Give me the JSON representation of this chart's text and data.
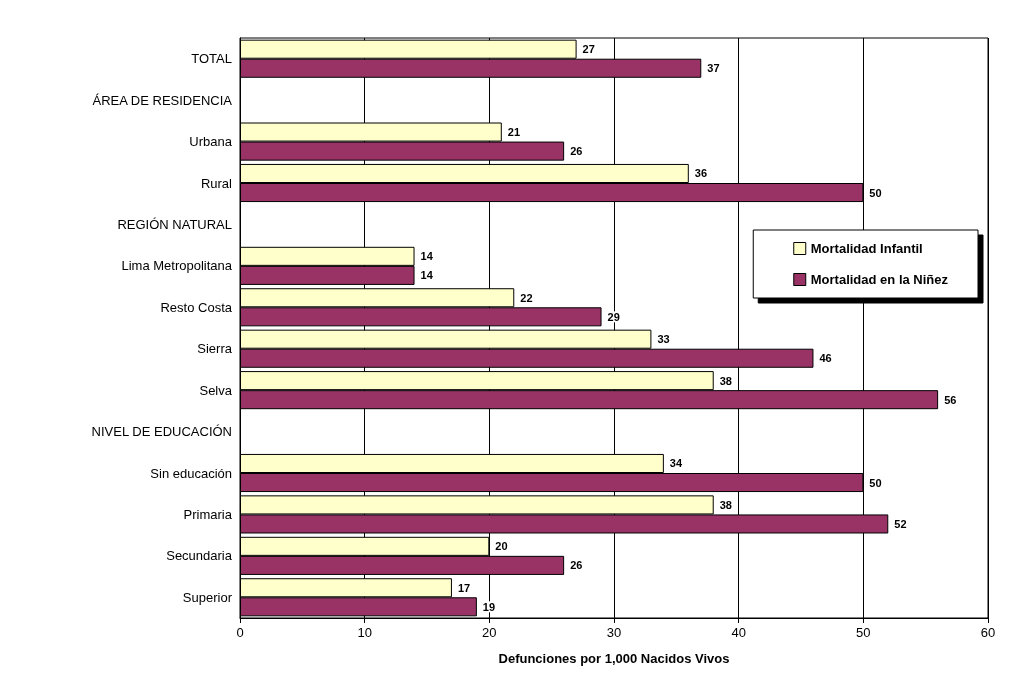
{
  "chart_data": {
    "type": "bar",
    "orientation": "horizontal",
    "xlabel": "Defunciones por 1,000 Nacidos Vivos",
    "categories": [
      "TOTAL",
      "ÁREA DE RESIDENCIA",
      "Urbana",
      "Rural",
      "REGIÓN NATURAL",
      "Lima Metropolitana",
      "Resto Costa",
      "Sierra",
      "Selva",
      "NIVEL DE EDUCACIÓN",
      "Sin educación",
      "Primaria",
      "Secundaria",
      "Superior"
    ],
    "series": [
      {
        "name": "Mortalidad Infantil",
        "color": "#ffffcc",
        "values": [
          27,
          null,
          21,
          36,
          null,
          14,
          22,
          33,
          38,
          null,
          34,
          38,
          20,
          17
        ]
      },
      {
        "name": "Mortalidad en la Niñez",
        "color": "#993366",
        "values": [
          37,
          null,
          26,
          50,
          null,
          14,
          29,
          46,
          56,
          null,
          50,
          52,
          26,
          19
        ]
      }
    ],
    "xlim": [
      0,
      60
    ],
    "xticks": [
      0,
      10,
      20,
      30,
      40,
      50,
      60
    ],
    "grid": "x",
    "legend": "right",
    "data_labels": true
  }
}
